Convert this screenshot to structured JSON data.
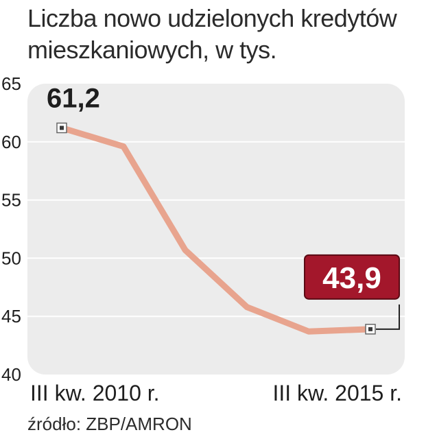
{
  "title_line1": "Liczba nowo udzielonych kredytów",
  "title_line2": "mieszkaniowych, w tys.",
  "source": "źródło: ZBP/AMRON",
  "colors": {
    "panel": "#ececec",
    "grid": "#ffffff",
    "line": "#e8a48e",
    "highlight_box": "#a3172b",
    "text": "#1e1e1e"
  },
  "chart_data": {
    "type": "line",
    "title": "Liczba nowo udzielonych kredytów mieszkaniowych, w tys.",
    "x_label_first": "III kw. 2010 r.",
    "x_label_last": "III kw. 2015 r.",
    "x": [
      0,
      1,
      2,
      3,
      4,
      5
    ],
    "y": [
      61.2,
      59.6,
      50.7,
      45.8,
      43.7,
      43.9
    ],
    "ylim": [
      40,
      65
    ],
    "y_ticks": [
      "65",
      "60",
      "55",
      "50",
      "45",
      "40"
    ],
    "grid": true,
    "annotations": {
      "first_label": "61,2",
      "last_label": "43,9"
    }
  }
}
